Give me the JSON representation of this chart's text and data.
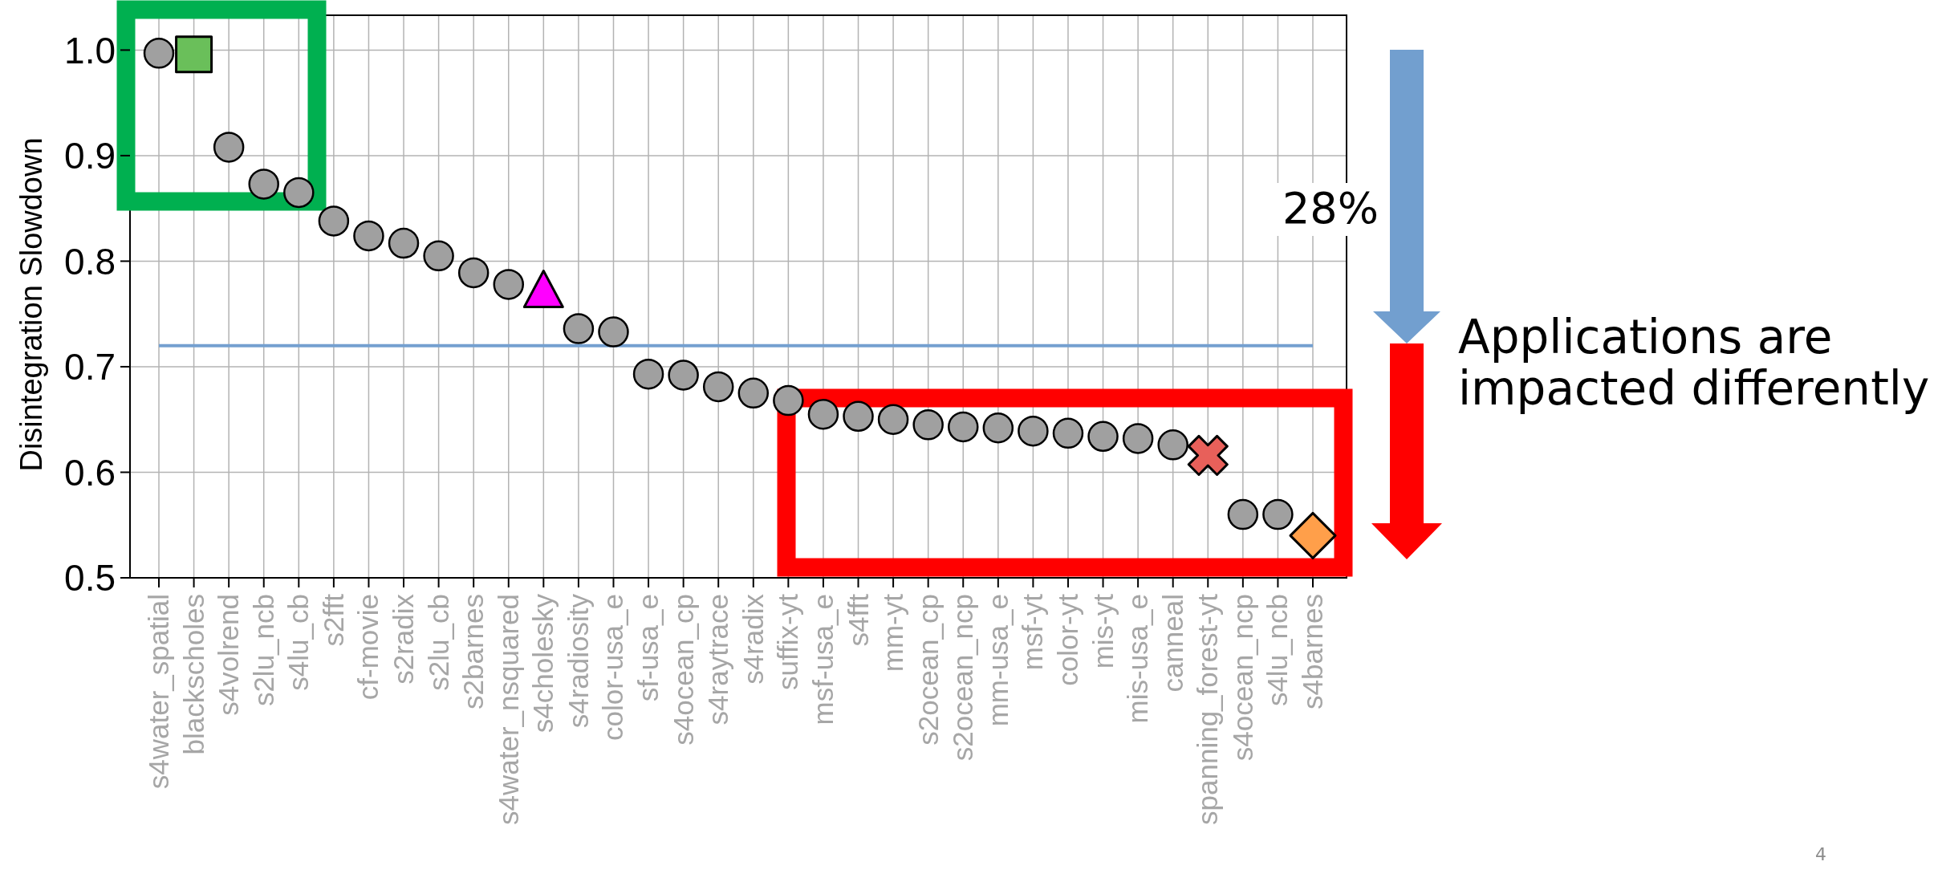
{
  "chart_data": {
    "type": "scatter",
    "ylabel": "Disintegration Slowdown",
    "categories": [
      "s4water_spatial",
      "blackscholes",
      "s4volrend",
      "s2lu_ncb",
      "s4lu_cb",
      "s2fft",
      "cf-movie",
      "s2radix",
      "s2lu_cb",
      "s2barnes",
      "s4water_nsquared",
      "s4cholesky",
      "s4radiosity",
      "color-usa_e",
      "sf-usa_e",
      "s4ocean_cp",
      "s4raytrace",
      "s4radix",
      "suffix-yt",
      "msf-usa_e",
      "s4fft",
      "mm-yt",
      "s2ocean_cp",
      "s2ocean_ncp",
      "mm-usa_e",
      "msf-yt",
      "color-yt",
      "mis-yt",
      "mis-usa_e",
      "canneal",
      "spanning_forest-yt",
      "s4ocean_ncp",
      "s4lu_ncb",
      "s4barnes"
    ],
    "series": [
      {
        "color": "#a0a0a0",
        "marker": "circle",
        "values": [
          0.997,
          null,
          0.908,
          0.873,
          0.865,
          0.838,
          0.824,
          0.817,
          0.805,
          0.789,
          0.778,
          null,
          0.736,
          0.733,
          0.693,
          0.692,
          0.681,
          0.675,
          0.668,
          0.655,
          0.653,
          0.65,
          0.645,
          0.643,
          0.642,
          0.639,
          0.637,
          0.634,
          0.632,
          0.626,
          null,
          0.56,
          0.56,
          null
        ]
      },
      {
        "color": "#6abf5a",
        "marker": "square",
        "values": [
          null,
          0.996,
          null,
          null,
          null,
          null,
          null,
          null,
          null,
          null,
          null,
          null,
          null,
          null,
          null,
          null,
          null,
          null,
          null,
          null,
          null,
          null,
          null,
          null,
          null,
          null,
          null,
          null,
          null,
          null,
          null,
          null,
          null,
          null
        ]
      },
      {
        "color": "#ff00ff",
        "marker": "triangle",
        "values": [
          null,
          null,
          null,
          null,
          null,
          null,
          null,
          null,
          null,
          null,
          null,
          0.768,
          null,
          null,
          null,
          null,
          null,
          null,
          null,
          null,
          null,
          null,
          null,
          null,
          null,
          null,
          null,
          null,
          null,
          null,
          null,
          null,
          null,
          null
        ]
      },
      {
        "color": "#e8605a",
        "marker": "cross",
        "values": [
          null,
          null,
          null,
          null,
          null,
          null,
          null,
          null,
          null,
          null,
          null,
          null,
          null,
          null,
          null,
          null,
          null,
          null,
          null,
          null,
          null,
          null,
          null,
          null,
          null,
          null,
          null,
          null,
          null,
          null,
          0.616,
          null,
          null,
          null
        ]
      },
      {
        "color": "#ff9f4a",
        "marker": "diamond",
        "values": [
          null,
          null,
          null,
          null,
          null,
          null,
          null,
          null,
          null,
          null,
          null,
          null,
          null,
          null,
          null,
          null,
          null,
          null,
          null,
          null,
          null,
          null,
          null,
          null,
          null,
          null,
          null,
          null,
          null,
          null,
          null,
          null,
          null,
          0.54
        ]
      }
    ],
    "ylim": [
      0.5,
      1.033
    ],
    "yticks": [
      {
        "value": 0.5,
        "label": "0.5"
      },
      {
        "value": 0.6,
        "label": "0.6"
      },
      {
        "value": 0.7,
        "label": "0.7"
      },
      {
        "value": 0.8,
        "label": "0.8"
      },
      {
        "value": 0.9,
        "label": "0.9"
      },
      {
        "value": 1.0,
        "label": "1.0"
      }
    ],
    "grid": true,
    "ref_lines": [
      {
        "axis": "y",
        "value": 0.72,
        "color": "#74a0d0"
      }
    ],
    "annotations": [
      "28%",
      "Applications are impacted differently",
      "4"
    ]
  }
}
